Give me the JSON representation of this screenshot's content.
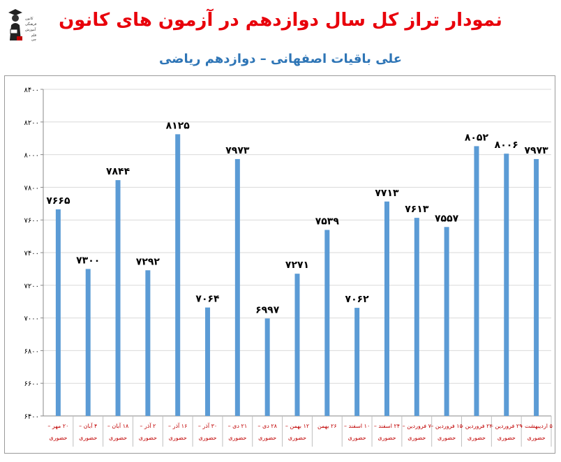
{
  "title": "نمودار تراز کل سال دوازدهم در آزمون های کانون",
  "subtitle": "علی باقیات اصفهانی – دوازدهم ریاضی",
  "logo": {
    "lines": [
      "کانون",
      "فرهنگی",
      "آموزش",
      "قلم چی"
    ],
    "icon": "graduate-figure-icon"
  },
  "colors": {
    "title": "#e8000b",
    "subtitle": "#2e75b6",
    "bar": "#5b9bd5",
    "grid": "#d9d9d9",
    "axis_text": "#000000",
    "category_text": "#c00000"
  },
  "chart_data": {
    "type": "bar",
    "title": "نمودار تراز کل سال دوازدهم در آزمون های کانون",
    "subtitle": "علی باقیات اصفهانی – دوازدهم ریاضی",
    "xlabel": "",
    "ylabel": "",
    "ylim": [
      6400,
      8400
    ],
    "yticks": [
      6400,
      6600,
      6800,
      7000,
      7200,
      7400,
      7600,
      7800,
      8000,
      8200,
      8400
    ],
    "ytick_labels": [
      "۶۴۰۰",
      "۶۶۰۰",
      "۶۸۰۰",
      "۷۰۰۰",
      "۷۲۰۰",
      "۷۴۰۰",
      "۷۶۰۰",
      "۷۸۰۰",
      "۸۰۰۰",
      "۸۲۰۰",
      "۸۴۰۰"
    ],
    "grid": true,
    "legend": "none",
    "categories": [
      [
        "۲۰ مهر –",
        "حضوری"
      ],
      [
        "۴ آبان –",
        "حضوری"
      ],
      [
        "۱۸ آبان –",
        "حضوری"
      ],
      [
        "۲ آذر –",
        "حضوری"
      ],
      [
        "۱۶ آذر –",
        "حضوری"
      ],
      [
        "۳۰ آذر –",
        "حضوری"
      ],
      [
        "۲۱ دی –",
        "حضوری"
      ],
      [
        "۲۸ دی –",
        "حضوری"
      ],
      [
        "۱۲ بهمن –",
        "حضوری"
      ],
      [
        "۲۶ بهمن",
        ""
      ],
      [
        "۱۰ اسفند –",
        "حضوری"
      ],
      [
        "۲۴ اسفند –",
        "حضوری"
      ],
      [
        "۷ فروردین –",
        "حضوری"
      ],
      [
        "۱۵ فروردین –",
        "حضوری"
      ],
      [
        "۲۲ فروردین –",
        "حضوری"
      ],
      [
        "۲۹ فروردین –",
        "حضوری"
      ],
      [
        "۵ اردیبهشت –",
        "حضوری"
      ]
    ],
    "values": [
      7665,
      7300,
      7844,
      7292,
      8125,
      7064,
      7973,
      6997,
      7271,
      7539,
      7062,
      7713,
      7613,
      7557,
      8052,
      8006,
      7973
    ],
    "value_labels": [
      "۷۶۶۵",
      "۷۳۰۰",
      "۷۸۴۴",
      "۷۲۹۲",
      "۸۱۲۵",
      "۷۰۶۴",
      "۷۹۷۳",
      "۶۹۹۷",
      "۷۲۷۱",
      "۷۵۳۹",
      "۷۰۶۲",
      "۷۷۱۳",
      "۷۶۱۳",
      "۷۵۵۷",
      "۸۰۵۲",
      "۸۰۰۶",
      "۷۹۷۳"
    ]
  }
}
